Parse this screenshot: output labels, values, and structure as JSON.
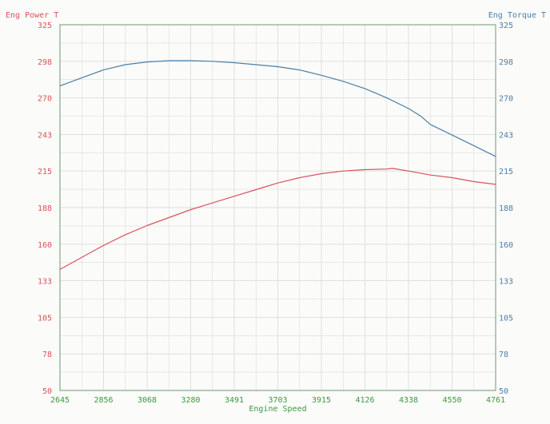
{
  "chart_data": {
    "type": "line",
    "xlabel": "Engine Speed",
    "ylabel_left": "Eng Power T",
    "ylabel_right": "Eng Torque T",
    "x_ticks": [
      "2645",
      "2856",
      "3068",
      "3280",
      "3491",
      "3703",
      "3915",
      "4126",
      "4338",
      "4550",
      "4761"
    ],
    "y_ticks_left": [
      "50",
      "78",
      "105",
      "133",
      "160",
      "188",
      "215",
      "243",
      "270",
      "298",
      "325"
    ],
    "y_ticks_right": [
      "50",
      "78",
      "105",
      "133",
      "160",
      "188",
      "215",
      "243",
      "270",
      "298",
      "325"
    ],
    "xlim": [
      2645,
      4761
    ],
    "ylim_left": [
      50,
      325
    ],
    "ylim_right": [
      50,
      325
    ],
    "grid": true,
    "colors": {
      "power": "#d9535a",
      "torque": "#4a7fa8",
      "x_axis_text": "#3c9a3c",
      "left_axis_text": "#d9535a",
      "right_axis_text": "#4a7fa8",
      "grid": "#dcdcdc",
      "plot_border": "#6f9a6f"
    },
    "series": [
      {
        "name": "Eng Power T",
        "axis": "left",
        "x": [
          2645,
          2750,
          2856,
          2962,
          3068,
          3174,
          3280,
          3385,
          3491,
          3597,
          3703,
          3809,
          3915,
          4020,
          4126,
          4232,
          4260,
          4338,
          4444,
          4550,
          4656,
          4761
        ],
        "y": [
          141,
          150,
          159,
          167,
          174,
          180,
          186,
          191,
          196,
          201,
          206,
          210,
          213,
          215,
          216,
          216.5,
          217,
          215,
          212,
          210,
          207,
          205
        ]
      },
      {
        "name": "Eng Torque T",
        "axis": "right",
        "x": [
          2645,
          2750,
          2856,
          2962,
          3068,
          3174,
          3280,
          3385,
          3491,
          3597,
          3703,
          3809,
          3915,
          4020,
          4126,
          4180,
          4232,
          4338,
          4400,
          4444,
          4550,
          4656,
          4761
        ],
        "y": [
          279,
          285,
          291,
          295,
          297,
          298,
          298,
          297.5,
          296.5,
          295,
          293.5,
          291,
          287,
          282.5,
          277,
          273.5,
          270,
          262,
          256,
          250,
          242,
          234,
          226
        ]
      }
    ]
  }
}
